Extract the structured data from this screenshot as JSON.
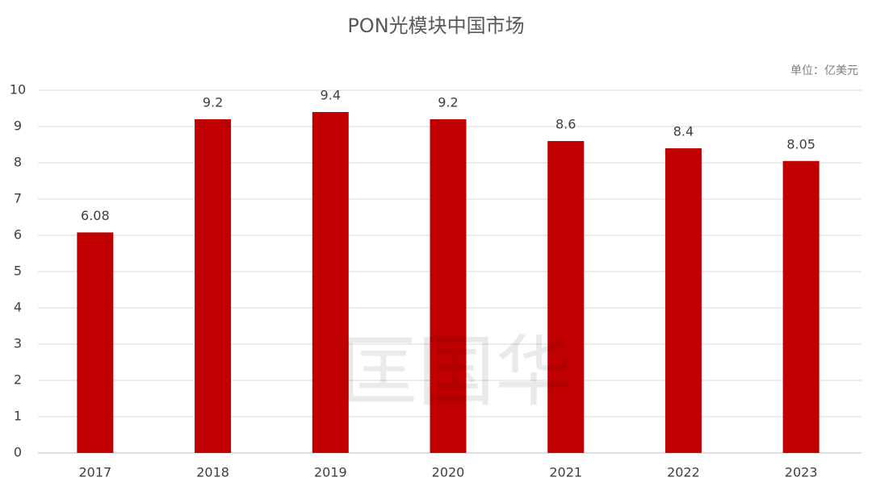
{
  "chart_data": {
    "type": "bar",
    "title": "PON光模块中国市场",
    "unit": "单位：亿美元",
    "watermark": "匡国华",
    "categories": [
      "2017",
      "2018",
      "2019",
      "2020",
      "2021",
      "2022",
      "2023"
    ],
    "values": [
      6.08,
      9.2,
      9.4,
      9.2,
      8.6,
      8.4,
      8.05
    ],
    "color": "#c00000",
    "ylim": [
      0,
      10
    ],
    "yticks": [
      0,
      1,
      2,
      3,
      4,
      5,
      6,
      7,
      8,
      9,
      10
    ],
    "grid": true
  }
}
